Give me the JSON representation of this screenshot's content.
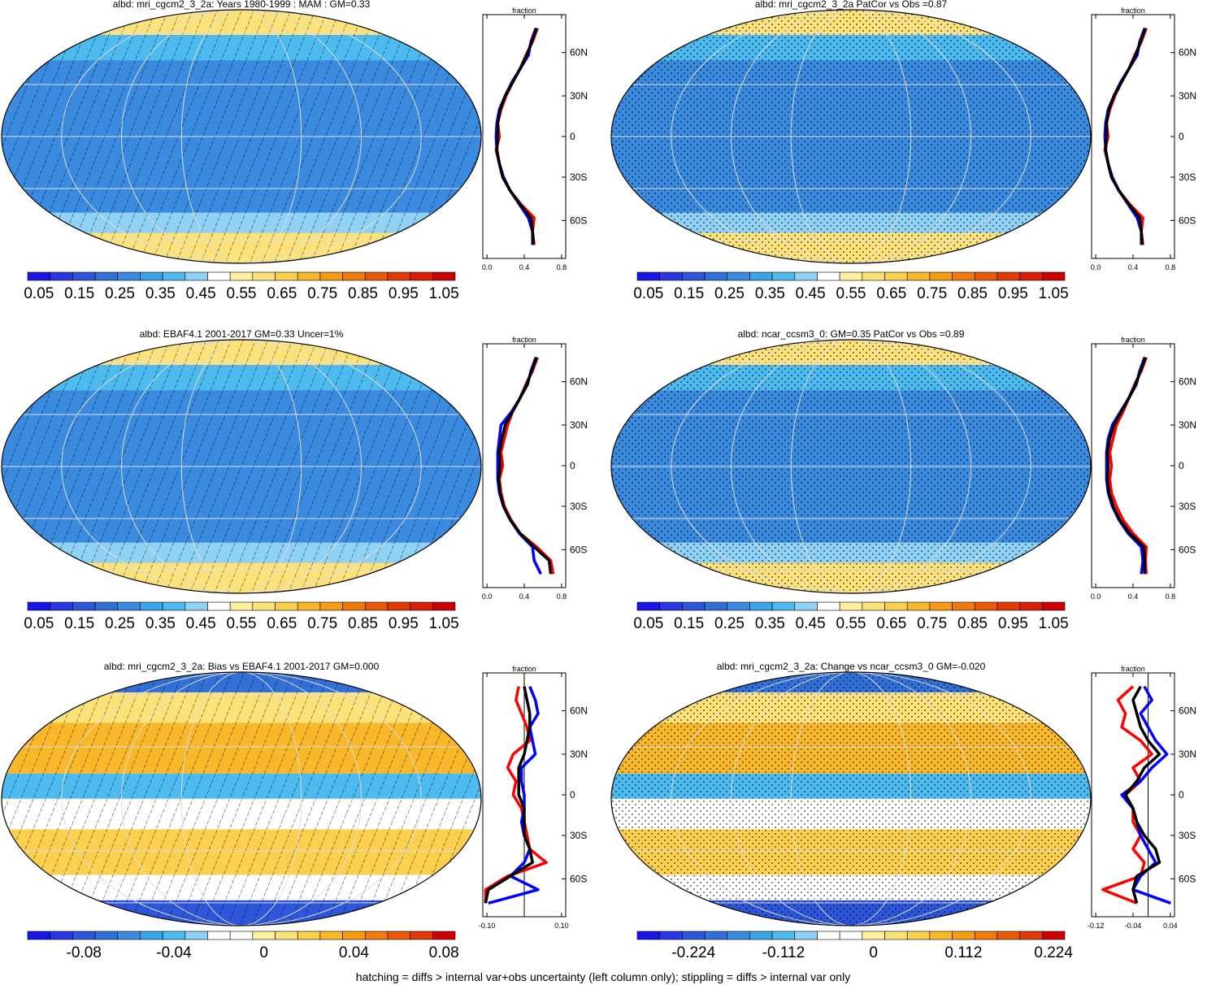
{
  "footer": "hatching = diffs > internal var+obs uncertainty (left column only); stippling = diffs > internal var only",
  "palette": {
    "abs": [
      "#1a14e6",
      "#2a36e0",
      "#2e56db",
      "#3170d6",
      "#3a8ae0",
      "#39a4ea",
      "#4dbaf0",
      "#8fd2f5",
      "#ffffff",
      "#fff0a0",
      "#fde27a",
      "#fbd04e",
      "#f9b82a",
      "#f69b14",
      "#f07a0c",
      "#e85a08",
      "#e03a06",
      "#d81e04",
      "#cc0000"
    ],
    "diff": [
      "#1a14e6",
      "#2a36e0",
      "#2e56db",
      "#3170d6",
      "#3a8ae0",
      "#39a4ea",
      "#4dbaf0",
      "#8fd2f5",
      "#ffffff",
      "#ffffff",
      "#fff0a0",
      "#fde27a",
      "#fbd04e",
      "#f9b82a",
      "#f69b14",
      "#f07a0c",
      "#e85a08",
      "#e03a06",
      "#cc0000"
    ]
  },
  "chart_data": [
    {
      "type": "heatmap",
      "title": "albd: mri_cgcm2_3_2a: Years 1980-1999 : MAM : GM=0.33",
      "overlay": "hatching",
      "colorbar": {
        "palette": "abs",
        "labels": [
          "0.05",
          "0.15",
          "0.25",
          "0.35",
          "0.45",
          "0.55",
          "0.65",
          "0.75",
          "0.85",
          "0.95",
          "1.05"
        ]
      },
      "profile": {
        "label": "fraction",
        "xlim": [
          0,
          1.0
        ],
        "xtick_labels": [
          "0.0",
          "0.4",
          "0.8"
        ],
        "ytick_labels": [
          "60N",
          "30N",
          "0",
          "30S",
          "60S"
        ],
        "zero_line": false,
        "series": [
          {
            "color": "#ff0000",
            "lat": [
              80,
              70,
              60,
              50,
              40,
              30,
              20,
              10,
              0,
              -10,
              -20,
              -30,
              -40,
              -50,
              -60,
              -70,
              -80
            ],
            "values": [
              0.66,
              0.6,
              0.52,
              0.45,
              0.36,
              0.28,
              0.22,
              0.18,
              0.2,
              0.16,
              0.2,
              0.24,
              0.33,
              0.46,
              0.62,
              0.6,
              0.62
            ]
          },
          {
            "color": "#0000ff",
            "lat": [
              80,
              70,
              60,
              50,
              40,
              30,
              20,
              10,
              0,
              -10,
              -20,
              -30,
              -40,
              -50,
              -60,
              -70,
              -80
            ],
            "values": [
              0.64,
              0.58,
              0.55,
              0.45,
              0.35,
              0.27,
              0.2,
              0.17,
              0.16,
              0.17,
              0.2,
              0.25,
              0.33,
              0.44,
              0.55,
              0.6,
              0.6
            ]
          },
          {
            "color": "#000000",
            "lat": [
              80,
              70,
              60,
              50,
              40,
              30,
              20,
              10,
              0,
              -10,
              -20,
              -30,
              -40,
              -50,
              -60,
              -70,
              -80
            ],
            "values": [
              0.65,
              0.59,
              0.53,
              0.45,
              0.36,
              0.27,
              0.21,
              0.18,
              0.18,
              0.17,
              0.2,
              0.24,
              0.33,
              0.45,
              0.58,
              0.6,
              0.61
            ]
          }
        ]
      }
    },
    {
      "type": "heatmap",
      "title": "albd: mri_cgcm2_3_2a PatCor vs Obs =0.87",
      "overlay": "stippling",
      "colorbar": {
        "palette": "abs",
        "labels": [
          "0.05",
          "0.15",
          "0.25",
          "0.35",
          "0.45",
          "0.55",
          "0.65",
          "0.75",
          "0.85",
          "0.95",
          "1.05"
        ]
      },
      "profile": {
        "label": "fraction",
        "xlim": [
          0,
          1.0
        ],
        "xtick_labels": [
          "0.0",
          "0.4",
          "0.8"
        ],
        "ytick_labels": [
          "60N",
          "30N",
          "0",
          "30S",
          "60S"
        ],
        "zero_line": false,
        "series": [
          {
            "color": "#ff0000",
            "lat": [
              80,
              70,
              60,
              50,
              40,
              30,
              20,
              10,
              0,
              -10,
              -20,
              -30,
              -40,
              -50,
              -60,
              -70,
              -80
            ],
            "values": [
              0.66,
              0.6,
              0.52,
              0.45,
              0.36,
              0.28,
              0.22,
              0.18,
              0.2,
              0.16,
              0.2,
              0.24,
              0.33,
              0.46,
              0.62,
              0.6,
              0.62
            ]
          },
          {
            "color": "#0000ff",
            "lat": [
              80,
              70,
              60,
              50,
              40,
              30,
              20,
              10,
              0,
              -10,
              -20,
              -30,
              -40,
              -50,
              -60,
              -70,
              -80
            ],
            "values": [
              0.64,
              0.58,
              0.55,
              0.45,
              0.35,
              0.27,
              0.2,
              0.17,
              0.16,
              0.17,
              0.2,
              0.25,
              0.33,
              0.44,
              0.55,
              0.6,
              0.6
            ]
          },
          {
            "color": "#000000",
            "lat": [
              80,
              70,
              60,
              50,
              40,
              30,
              20,
              10,
              0,
              -10,
              -20,
              -30,
              -40,
              -50,
              -60,
              -70,
              -80
            ],
            "values": [
              0.65,
              0.59,
              0.53,
              0.45,
              0.36,
              0.27,
              0.21,
              0.18,
              0.18,
              0.17,
              0.2,
              0.24,
              0.33,
              0.45,
              0.58,
              0.6,
              0.61
            ]
          }
        ]
      }
    },
    {
      "type": "heatmap",
      "title": "albd: EBAF4.1 2001-2017 GM=0.33 Uncer=1%",
      "overlay": "hatching",
      "colorbar": {
        "palette": "abs",
        "labels": [
          "0.05",
          "0.15",
          "0.25",
          "0.35",
          "0.45",
          "0.55",
          "0.65",
          "0.75",
          "0.85",
          "0.95",
          "1.05"
        ]
      },
      "profile": {
        "label": "fraction",
        "xlim": [
          0,
          1.0
        ],
        "xtick_labels": [
          "0.0",
          "0.4",
          "0.8"
        ],
        "ytick_labels": [
          "60N",
          "30N",
          "0",
          "30S",
          "60S"
        ],
        "zero_line": false,
        "series": [
          {
            "color": "#ff0000",
            "lat": [
              80,
              70,
              60,
              50,
              40,
              30,
              20,
              10,
              0,
              -10,
              -20,
              -30,
              -40,
              -50,
              -60,
              -70,
              -80
            ],
            "values": [
              0.66,
              0.6,
              0.52,
              0.45,
              0.36,
              0.3,
              0.26,
              0.22,
              0.24,
              0.2,
              0.22,
              0.26,
              0.34,
              0.45,
              0.65,
              0.82,
              0.85
            ]
          },
          {
            "color": "#0000ff",
            "lat": [
              80,
              70,
              60,
              50,
              40,
              30,
              20,
              10,
              0,
              -10,
              -20,
              -30,
              -40,
              -50,
              -60,
              -70,
              -80
            ],
            "values": [
              0.64,
              0.58,
              0.54,
              0.45,
              0.35,
              0.22,
              0.2,
              0.18,
              0.18,
              0.18,
              0.2,
              0.25,
              0.33,
              0.44,
              0.6,
              0.62,
              0.7
            ]
          },
          {
            "color": "#000000",
            "lat": [
              80,
              70,
              60,
              50,
              40,
              30,
              20,
              10,
              0,
              -10,
              -20,
              -30,
              -40,
              -50,
              -60,
              -70,
              -80
            ],
            "values": [
              0.65,
              0.59,
              0.53,
              0.45,
              0.36,
              0.27,
              0.23,
              0.2,
              0.21,
              0.19,
              0.21,
              0.25,
              0.33,
              0.45,
              0.62,
              0.8,
              0.82
            ]
          }
        ]
      }
    },
    {
      "type": "heatmap",
      "title": "albd: ncar_ccsm3_0: GM=0.35 PatCor vs Obs =0.89",
      "overlay": "stippling",
      "colorbar": {
        "palette": "abs",
        "labels": [
          "0.05",
          "0.15",
          "0.25",
          "0.35",
          "0.45",
          "0.55",
          "0.65",
          "0.75",
          "0.85",
          "0.95",
          "1.05"
        ]
      },
      "profile": {
        "label": "fraction",
        "xlim": [
          0,
          1.0
        ],
        "xtick_labels": [
          "0.0",
          "0.4",
          "0.8"
        ],
        "ytick_labels": [
          "60N",
          "30N",
          "0",
          "30S",
          "60S"
        ],
        "zero_line": false,
        "series": [
          {
            "color": "#ff0000",
            "lat": [
              80,
              70,
              60,
              50,
              40,
              30,
              20,
              10,
              0,
              -10,
              -20,
              -30,
              -40,
              -50,
              -60,
              -70,
              -80
            ],
            "values": [
              0.66,
              0.6,
              0.52,
              0.45,
              0.38,
              0.3,
              0.26,
              0.22,
              0.24,
              0.22,
              0.24,
              0.3,
              0.38,
              0.5,
              0.66,
              0.65,
              0.66
            ]
          },
          {
            "color": "#0000ff",
            "lat": [
              80,
              70,
              60,
              50,
              40,
              30,
              20,
              10,
              0,
              -10,
              -20,
              -30,
              -40,
              -50,
              -60,
              -70,
              -80
            ],
            "values": [
              0.64,
              0.58,
              0.54,
              0.45,
              0.35,
              0.25,
              0.2,
              0.18,
              0.18,
              0.18,
              0.2,
              0.25,
              0.33,
              0.44,
              0.6,
              0.62,
              0.6
            ]
          },
          {
            "color": "#000000",
            "lat": [
              80,
              70,
              60,
              50,
              40,
              30,
              20,
              10,
              0,
              -10,
              -20,
              -30,
              -40,
              -50,
              -60,
              -70,
              -80
            ],
            "values": [
              0.65,
              0.59,
              0.53,
              0.45,
              0.36,
              0.27,
              0.22,
              0.19,
              0.2,
              0.19,
              0.21,
              0.26,
              0.34,
              0.46,
              0.63,
              0.64,
              0.64
            ]
          }
        ]
      }
    },
    {
      "type": "heatmap",
      "title": "albd: mri_cgcm2_3_2a: Bias vs EBAF4.1 2001-2017 GM=0.000",
      "overlay": "hatching",
      "colorbar": {
        "palette": "diff",
        "labels": [
          "-0.08",
          "-0.04",
          "0",
          "0.04",
          "0.08"
        ]
      },
      "profile": {
        "label": "fraction",
        "xlim": [
          -0.15,
          0.15
        ],
        "xtick_labels": [
          "-0.10",
          "0.10"
        ],
        "ytick_labels": [
          "60N",
          "30N",
          "0",
          "30S",
          "60S"
        ],
        "zero_line": true,
        "series": [
          {
            "color": "#ff0000",
            "lat": [
              80,
              70,
              60,
              50,
              40,
              30,
              20,
              10,
              0,
              -10,
              -20,
              -30,
              -40,
              -50,
              -60,
              -70,
              -80
            ],
            "values": [
              -0.02,
              -0.03,
              -0.01,
              0.01,
              0.02,
              -0.04,
              -0.06,
              -0.03,
              -0.04,
              -0.01,
              0.0,
              0.01,
              0.02,
              0.08,
              -0.06,
              -0.14,
              -0.14
            ]
          },
          {
            "color": "#0000ff",
            "lat": [
              80,
              70,
              60,
              50,
              40,
              30,
              20,
              10,
              0,
              -10,
              -20,
              -30,
              -40,
              -50,
              -60,
              -70,
              -80
            ],
            "values": [
              0.02,
              0.04,
              0.05,
              0.02,
              0.03,
              0.04,
              -0.01,
              -0.01,
              0.0,
              0.0,
              -0.01,
              0.0,
              0.02,
              0.0,
              -0.05,
              0.05,
              -0.13
            ]
          },
          {
            "color": "#000000",
            "lat": [
              80,
              70,
              60,
              50,
              40,
              30,
              20,
              10,
              0,
              -10,
              -20,
              -30,
              -40,
              -50,
              -60,
              -70,
              -80
            ],
            "values": [
              0.0,
              0.01,
              0.02,
              0.02,
              0.01,
              0.0,
              -0.02,
              -0.02,
              -0.02,
              0.0,
              0.0,
              0.0,
              0.02,
              0.03,
              -0.05,
              -0.13,
              -0.14
            ]
          }
        ]
      }
    },
    {
      "type": "heatmap",
      "title": "albd: mri_cgcm2_3_2a: Change vs ncar_ccsm3_0 GM=-0.020",
      "overlay": "stippling",
      "colorbar": {
        "palette": "diff",
        "labels": [
          "-0.224",
          "-0.112",
          "0",
          "0.112",
          "0.224"
        ]
      },
      "profile": {
        "label": "fraction",
        "xlim": [
          -0.15,
          0.07
        ],
        "xtick_labels": [
          "-0.12",
          "-0.04",
          "0.04"
        ],
        "ytick_labels": [
          "60N",
          "30N",
          "0",
          "30S",
          "60S"
        ],
        "zero_line": true,
        "series": [
          {
            "color": "#ff0000",
            "lat": [
              80,
              70,
              60,
              50,
              40,
              30,
              20,
              10,
              0,
              -10,
              -20,
              -30,
              -40,
              -50,
              -60,
              -70,
              -80
            ],
            "values": [
              -0.04,
              -0.08,
              -0.06,
              -0.07,
              -0.02,
              0.01,
              -0.04,
              -0.02,
              -0.06,
              -0.04,
              -0.04,
              -0.02,
              -0.04,
              -0.01,
              -0.02,
              -0.12,
              -0.03
            ]
          },
          {
            "color": "#0000ff",
            "lat": [
              80,
              70,
              60,
              50,
              40,
              30,
              20,
              10,
              0,
              -10,
              -20,
              -30,
              -40,
              -50,
              -60,
              -70,
              -80
            ],
            "values": [
              -0.01,
              0.01,
              -0.02,
              0.0,
              0.02,
              0.05,
              0.01,
              -0.02,
              -0.07,
              -0.04,
              -0.03,
              -0.02,
              0.0,
              0.02,
              -0.02,
              -0.04,
              0.06
            ]
          },
          {
            "color": "#000000",
            "lat": [
              80,
              70,
              60,
              50,
              40,
              30,
              20,
              10,
              0,
              -10,
              -20,
              -30,
              -40,
              -50,
              -60,
              -70,
              -80
            ],
            "values": [
              -0.02,
              -0.04,
              -0.03,
              -0.02,
              0.0,
              0.03,
              -0.01,
              -0.03,
              -0.06,
              -0.04,
              -0.03,
              -0.01,
              0.02,
              0.03,
              -0.03,
              -0.04,
              -0.03
            ]
          }
        ]
      }
    }
  ]
}
